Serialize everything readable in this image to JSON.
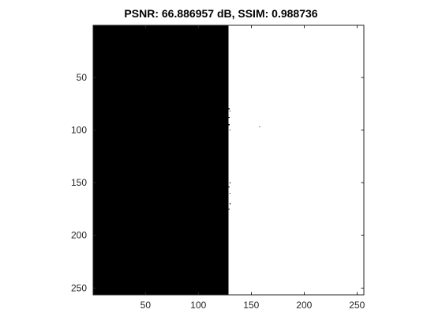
{
  "chart_data": {
    "type": "heatmap",
    "title": "PSNR: 66.886957 dB, SSIM: 0.988736",
    "xlim": [
      0.5,
      256.5
    ],
    "ylim": [
      0.5,
      256.5
    ],
    "y_direction": "reverse",
    "colormap": "gray",
    "xticks": [
      50,
      100,
      150,
      200,
      250
    ],
    "yticks": [
      50,
      100,
      150,
      200,
      250
    ],
    "xtick_labels": [
      "50",
      "100",
      "150",
      "200",
      "250"
    ],
    "ytick_labels": [
      "50",
      "100",
      "150",
      "200",
      "250"
    ],
    "regions": [
      {
        "name": "dark-half",
        "x_range": [
          0.5,
          128.5
        ],
        "y_range": [
          0.5,
          256.5
        ],
        "value": 0
      },
      {
        "name": "bright-half",
        "x_range": [
          128.5,
          256.5
        ],
        "y_range": [
          0.5,
          256.5
        ],
        "value": 255
      }
    ],
    "edge_artifacts": [
      {
        "x": 129,
        "y": 80,
        "value": 0
      },
      {
        "x": 130,
        "y": 82,
        "value": 0
      },
      {
        "x": 129,
        "y": 88,
        "value": 0
      },
      {
        "x": 129,
        "y": 95,
        "value": 0
      },
      {
        "x": 130,
        "y": 100,
        "value": 0
      },
      {
        "x": 130,
        "y": 150,
        "value": 0
      },
      {
        "x": 129,
        "y": 154,
        "value": 0
      },
      {
        "x": 130,
        "y": 160,
        "value": 0
      },
      {
        "x": 130,
        "y": 170,
        "value": 0
      },
      {
        "x": 129,
        "y": 175,
        "value": 0
      },
      {
        "x": 158,
        "y": 97,
        "value": 0
      }
    ],
    "colors": {
      "dark": "#000000",
      "bright": "#ffffff",
      "axis": "#262626"
    }
  }
}
